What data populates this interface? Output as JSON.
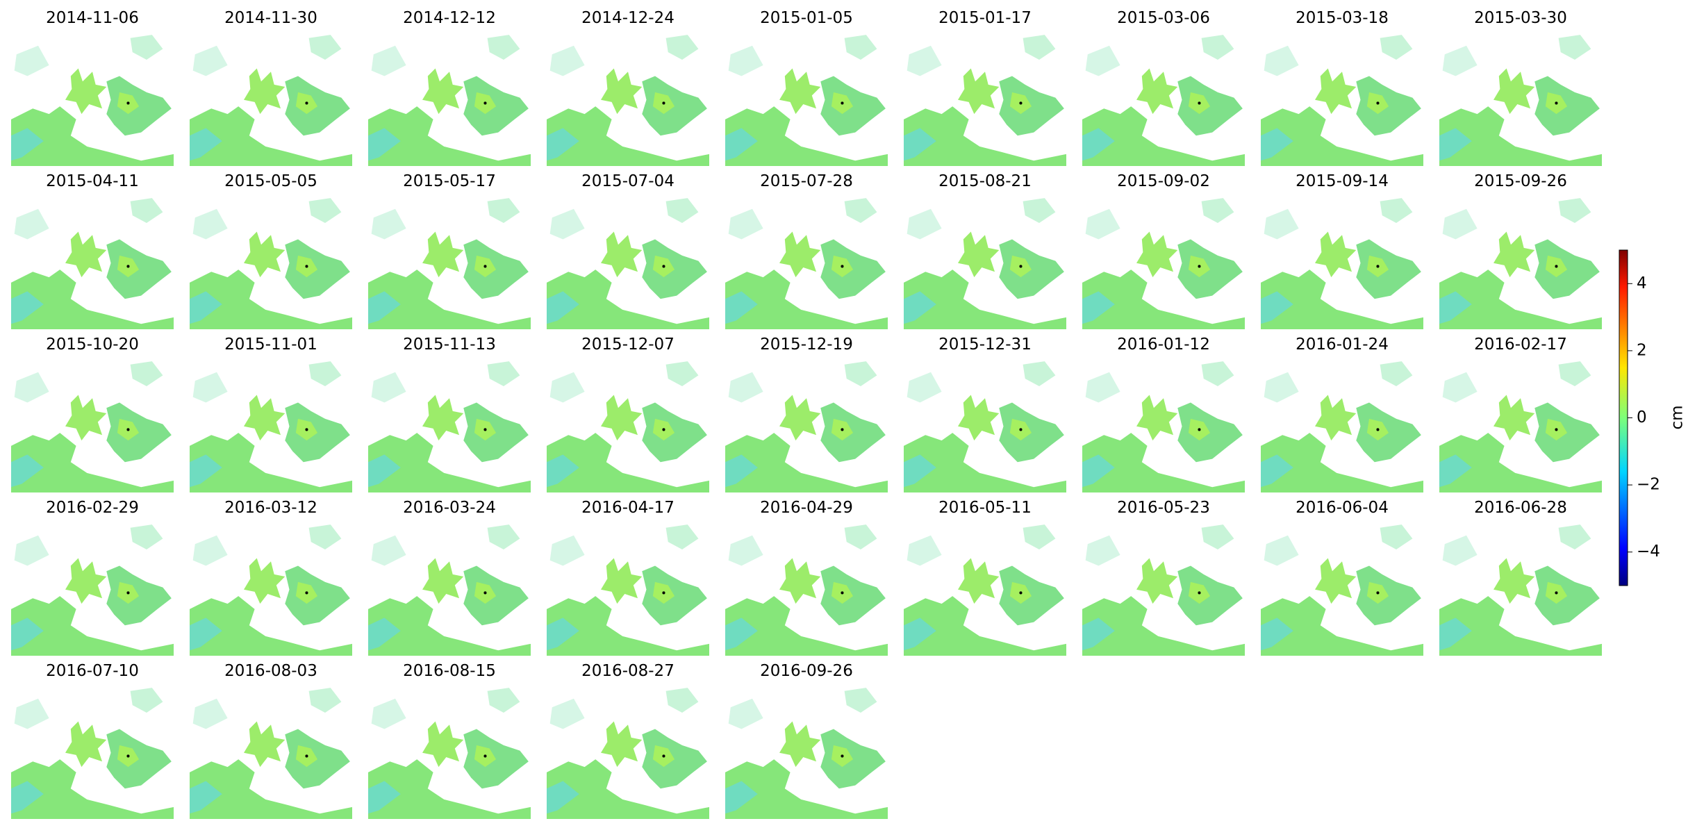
{
  "chart_data": {
    "type": "image-grid",
    "panels": [
      "2014-11-06",
      "2014-11-30",
      "2014-12-12",
      "2014-12-24",
      "2015-01-05",
      "2015-01-17",
      "2015-03-06",
      "2015-03-18",
      "2015-03-30",
      "2015-04-11",
      "2015-05-05",
      "2015-05-17",
      "2015-07-04",
      "2015-07-28",
      "2015-08-21",
      "2015-09-02",
      "2015-09-14",
      "2015-09-26",
      "2015-10-20",
      "2015-11-01",
      "2015-11-13",
      "2015-12-07",
      "2015-12-19",
      "2015-12-31",
      "2016-01-12",
      "2016-01-24",
      "2016-02-17",
      "2016-02-29",
      "2016-03-12",
      "2016-03-24",
      "2016-04-17",
      "2016-04-29",
      "2016-05-11",
      "2016-05-23",
      "2016-06-04",
      "2016-06-28",
      "2016-07-10",
      "2016-08-03",
      "2016-08-15",
      "2016-08-27",
      "2016-09-26"
    ],
    "columns": 9,
    "colorbar": {
      "label": "cm",
      "lim": [
        -5,
        5
      ],
      "ticks": [
        {
          "value": -4,
          "label": "−4"
        },
        {
          "value": -2,
          "label": "−2"
        },
        0,
        2,
        4
      ]
    }
  }
}
